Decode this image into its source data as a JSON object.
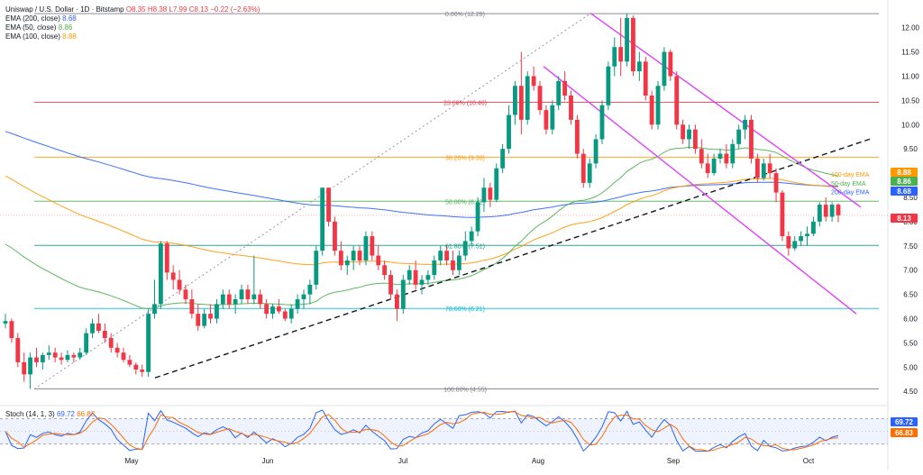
{
  "header": {
    "symbol": "Uniswap / U.S. Dollar · 1D · Bitstamp",
    "ohlc": "O8.35 H8.38 L7.99 C8.13 −0.22 (−2.63%)",
    "ema_rows": [
      {
        "label": "EMA (200, close)",
        "value": "8.68",
        "color": "#2962ff"
      },
      {
        "label": "EMA (50, close)",
        "value": "8.86",
        "color": "#4caf50"
      },
      {
        "label": "EMA (100, close)",
        "value": "8.88",
        "color": "#ff9800"
      }
    ]
  },
  "stoch_header": {
    "label": "Stoch (14, 1, 3)",
    "k": "69.72",
    "d": "66.83"
  },
  "chart_data": {
    "type": "candlestick",
    "title": "Uniswap / U.S. Dollar · 1D · Bitstamp",
    "price_axis_ticks": [
      "12.00",
      "11.50",
      "11.00",
      "10.50",
      "10.00",
      "9.50",
      "9.00",
      "8.50",
      "8.00",
      "7.50",
      "7.00",
      "6.50",
      "6.00",
      "5.50",
      "5.00",
      "4.50"
    ],
    "ylim": [
      4.5,
      12.3
    ],
    "time_labels": [
      "May",
      "Jun",
      "Jul",
      "Aug",
      "Sep",
      "Oct"
    ],
    "last_price": 8.13,
    "fibonacci": [
      {
        "label": "0.00% (12.29)",
        "value": 12.29,
        "color": "#787b86"
      },
      {
        "label": "23.60% (10.46)",
        "value": 10.46,
        "color": "#f23645"
      },
      {
        "label": "38.20% (9.33)",
        "value": 9.33,
        "color": "#ff9800"
      },
      {
        "label": "50.00% (8.42)",
        "value": 8.42,
        "color": "#4caf50"
      },
      {
        "label": "61.80% (7.51)",
        "value": 7.51,
        "color": "#089981"
      },
      {
        "label": "78.60% (6.21)",
        "value": 6.21,
        "color": "#00bcd4"
      },
      {
        "label": "100.00% (4.55)",
        "value": 4.55,
        "color": "#787b86"
      }
    ],
    "ema_labels": [
      {
        "text": "100-day EMA",
        "color": "#ff9800"
      },
      {
        "text": "50-day EMA",
        "color": "#4caf50"
      },
      {
        "text": "200-day EMA",
        "color": "#2962ff"
      }
    ],
    "price_tags": [
      {
        "value": "8.88",
        "color": "#ff9800"
      },
      {
        "value": "8.86",
        "color": "#4caf50"
      },
      {
        "value": "8.68",
        "color": "#2962ff"
      },
      {
        "value": "8.13",
        "color": "#f23645"
      }
    ],
    "stoch_tags": [
      {
        "value": "69.72",
        "color": "#2962ff"
      },
      {
        "value": "66.83",
        "color": "#ff6d00"
      }
    ],
    "candles": [
      {
        "o": 5.9,
        "h": 6.1,
        "l": 5.8,
        "c": 5.95
      },
      {
        "o": 5.95,
        "h": 6.0,
        "l": 5.5,
        "c": 5.6
      },
      {
        "o": 5.6,
        "h": 5.7,
        "l": 5.0,
        "c": 5.1
      },
      {
        "o": 5.1,
        "h": 5.3,
        "l": 4.7,
        "c": 4.85
      },
      {
        "o": 4.85,
        "h": 5.3,
        "l": 4.55,
        "c": 5.2
      },
      {
        "o": 5.2,
        "h": 5.4,
        "l": 5.0,
        "c": 5.1
      },
      {
        "o": 5.1,
        "h": 5.3,
        "l": 4.95,
        "c": 5.25
      },
      {
        "o": 5.25,
        "h": 5.45,
        "l": 5.15,
        "c": 5.3
      },
      {
        "o": 5.3,
        "h": 5.4,
        "l": 5.1,
        "c": 5.2
      },
      {
        "o": 5.2,
        "h": 5.3,
        "l": 5.05,
        "c": 5.15
      },
      {
        "o": 5.15,
        "h": 5.35,
        "l": 5.1,
        "c": 5.25
      },
      {
        "o": 5.25,
        "h": 5.3,
        "l": 5.1,
        "c": 5.2
      },
      {
        "o": 5.2,
        "h": 5.4,
        "l": 5.15,
        "c": 5.3
      },
      {
        "o": 5.3,
        "h": 5.8,
        "l": 5.25,
        "c": 5.7
      },
      {
        "o": 5.7,
        "h": 6.0,
        "l": 5.6,
        "c": 5.9
      },
      {
        "o": 5.9,
        "h": 6.1,
        "l": 5.7,
        "c": 5.75
      },
      {
        "o": 5.75,
        "h": 5.9,
        "l": 5.5,
        "c": 5.6
      },
      {
        "o": 5.6,
        "h": 5.7,
        "l": 5.3,
        "c": 5.4
      },
      {
        "o": 5.4,
        "h": 5.5,
        "l": 5.2,
        "c": 5.3
      },
      {
        "o": 5.3,
        "h": 5.4,
        "l": 5.1,
        "c": 5.15
      },
      {
        "o": 5.15,
        "h": 5.25,
        "l": 5.0,
        "c": 5.05
      },
      {
        "o": 5.05,
        "h": 5.1,
        "l": 4.85,
        "c": 4.95
      },
      {
        "o": 4.95,
        "h": 5.05,
        "l": 4.8,
        "c": 4.9
      },
      {
        "o": 4.9,
        "h": 6.2,
        "l": 4.8,
        "c": 6.1
      },
      {
        "o": 6.1,
        "h": 6.8,
        "l": 6.0,
        "c": 6.3
      },
      {
        "o": 6.3,
        "h": 7.6,
        "l": 6.2,
        "c": 7.55
      },
      {
        "o": 7.55,
        "h": 7.6,
        "l": 6.8,
        "c": 6.95
      },
      {
        "o": 6.95,
        "h": 7.1,
        "l": 6.6,
        "c": 6.8
      },
      {
        "o": 6.8,
        "h": 7.0,
        "l": 6.5,
        "c": 6.6
      },
      {
        "o": 6.6,
        "h": 6.7,
        "l": 6.3,
        "c": 6.4
      },
      {
        "o": 6.4,
        "h": 6.6,
        "l": 6.0,
        "c": 6.1
      },
      {
        "o": 6.1,
        "h": 6.3,
        "l": 5.75,
        "c": 5.85
      },
      {
        "o": 5.85,
        "h": 6.2,
        "l": 5.8,
        "c": 6.1
      },
      {
        "o": 6.1,
        "h": 6.3,
        "l": 5.9,
        "c": 6.0
      },
      {
        "o": 6.0,
        "h": 6.4,
        "l": 5.9,
        "c": 6.3
      },
      {
        "o": 6.3,
        "h": 6.6,
        "l": 6.2,
        "c": 6.5
      },
      {
        "o": 6.5,
        "h": 6.6,
        "l": 6.2,
        "c": 6.3
      },
      {
        "o": 6.3,
        "h": 6.5,
        "l": 6.1,
        "c": 6.4
      },
      {
        "o": 6.4,
        "h": 6.7,
        "l": 6.3,
        "c": 6.6
      },
      {
        "o": 6.6,
        "h": 6.7,
        "l": 6.3,
        "c": 6.4
      },
      {
        "o": 6.4,
        "h": 7.3,
        "l": 6.3,
        "c": 6.5
      },
      {
        "o": 6.5,
        "h": 6.6,
        "l": 6.2,
        "c": 6.3
      },
      {
        "o": 6.3,
        "h": 6.4,
        "l": 6.0,
        "c": 6.1
      },
      {
        "o": 6.1,
        "h": 6.3,
        "l": 6.0,
        "c": 6.25
      },
      {
        "o": 6.25,
        "h": 6.4,
        "l": 6.1,
        "c": 6.15
      },
      {
        "o": 6.15,
        "h": 6.2,
        "l": 5.95,
        "c": 6.0
      },
      {
        "o": 6.0,
        "h": 6.3,
        "l": 5.9,
        "c": 6.2
      },
      {
        "o": 6.2,
        "h": 6.5,
        "l": 6.1,
        "c": 6.4
      },
      {
        "o": 6.4,
        "h": 6.6,
        "l": 6.2,
        "c": 6.5
      },
      {
        "o": 6.5,
        "h": 6.8,
        "l": 6.3,
        "c": 6.7
      },
      {
        "o": 6.7,
        "h": 7.5,
        "l": 6.6,
        "c": 7.4
      },
      {
        "o": 7.4,
        "h": 8.7,
        "l": 7.3,
        "c": 8.7
      },
      {
        "o": 8.7,
        "h": 8.7,
        "l": 7.9,
        "c": 8.0
      },
      {
        "o": 8.0,
        "h": 8.1,
        "l": 7.3,
        "c": 7.4
      },
      {
        "o": 7.4,
        "h": 7.6,
        "l": 7.0,
        "c": 7.1
      },
      {
        "o": 7.1,
        "h": 7.3,
        "l": 6.9,
        "c": 7.2
      },
      {
        "o": 7.2,
        "h": 7.5,
        "l": 7.0,
        "c": 7.4
      },
      {
        "o": 7.4,
        "h": 7.5,
        "l": 7.1,
        "c": 7.2
      },
      {
        "o": 7.2,
        "h": 7.8,
        "l": 7.1,
        "c": 7.7
      },
      {
        "o": 7.7,
        "h": 7.8,
        "l": 7.2,
        "c": 7.3
      },
      {
        "o": 7.3,
        "h": 7.5,
        "l": 7.0,
        "c": 7.1
      },
      {
        "o": 7.1,
        "h": 7.2,
        "l": 6.8,
        "c": 6.9
      },
      {
        "o": 6.9,
        "h": 7.0,
        "l": 6.4,
        "c": 6.5
      },
      {
        "o": 6.5,
        "h": 6.6,
        "l": 5.95,
        "c": 6.2
      },
      {
        "o": 6.2,
        "h": 6.9,
        "l": 6.1,
        "c": 6.8
      },
      {
        "o": 6.8,
        "h": 7.1,
        "l": 6.7,
        "c": 7.0
      },
      {
        "o": 7.0,
        "h": 7.2,
        "l": 6.6,
        "c": 6.7
      },
      {
        "o": 6.7,
        "h": 6.9,
        "l": 6.5,
        "c": 6.8
      },
      {
        "o": 6.8,
        "h": 7.0,
        "l": 6.7,
        "c": 6.9
      },
      {
        "o": 6.9,
        "h": 7.3,
        "l": 6.8,
        "c": 7.2
      },
      {
        "o": 7.2,
        "h": 7.5,
        "l": 7.1,
        "c": 7.4
      },
      {
        "o": 7.4,
        "h": 7.5,
        "l": 7.1,
        "c": 7.2
      },
      {
        "o": 7.2,
        "h": 7.4,
        "l": 6.9,
        "c": 7.0
      },
      {
        "o": 7.0,
        "h": 7.4,
        "l": 6.9,
        "c": 7.3
      },
      {
        "o": 7.3,
        "h": 7.8,
        "l": 7.2,
        "c": 7.6
      },
      {
        "o": 7.6,
        "h": 7.9,
        "l": 7.5,
        "c": 7.8
      },
      {
        "o": 7.8,
        "h": 8.5,
        "l": 7.7,
        "c": 8.4
      },
      {
        "o": 8.4,
        "h": 8.9,
        "l": 8.2,
        "c": 8.7
      },
      {
        "o": 8.7,
        "h": 8.8,
        "l": 8.3,
        "c": 8.45
      },
      {
        "o": 8.45,
        "h": 9.2,
        "l": 8.4,
        "c": 9.1
      },
      {
        "o": 9.1,
        "h": 9.6,
        "l": 9.0,
        "c": 9.5
      },
      {
        "o": 9.5,
        "h": 10.4,
        "l": 9.4,
        "c": 10.2
      },
      {
        "o": 10.2,
        "h": 10.9,
        "l": 10.0,
        "c": 10.8
      },
      {
        "o": 10.8,
        "h": 11.5,
        "l": 9.8,
        "c": 10.1
      },
      {
        "o": 10.1,
        "h": 11.1,
        "l": 10.0,
        "c": 11.0
      },
      {
        "o": 11.0,
        "h": 11.2,
        "l": 10.7,
        "c": 10.8
      },
      {
        "o": 10.8,
        "h": 10.9,
        "l": 10.2,
        "c": 10.3
      },
      {
        "o": 10.3,
        "h": 10.4,
        "l": 9.8,
        "c": 9.9
      },
      {
        "o": 9.9,
        "h": 10.5,
        "l": 9.8,
        "c": 10.4
      },
      {
        "o": 10.4,
        "h": 11.0,
        "l": 10.3,
        "c": 10.9
      },
      {
        "o": 10.9,
        "h": 11.1,
        "l": 10.5,
        "c": 10.6
      },
      {
        "o": 10.6,
        "h": 10.7,
        "l": 10.0,
        "c": 10.1
      },
      {
        "o": 10.1,
        "h": 10.2,
        "l": 9.3,
        "c": 9.4
      },
      {
        "o": 9.4,
        "h": 9.5,
        "l": 8.7,
        "c": 8.8
      },
      {
        "o": 8.8,
        "h": 9.3,
        "l": 8.7,
        "c": 9.2
      },
      {
        "o": 9.2,
        "h": 9.8,
        "l": 9.1,
        "c": 9.7
      },
      {
        "o": 9.7,
        "h": 10.5,
        "l": 9.6,
        "c": 10.4
      },
      {
        "o": 10.4,
        "h": 11.3,
        "l": 10.3,
        "c": 11.2
      },
      {
        "o": 11.2,
        "h": 11.8,
        "l": 11.0,
        "c": 11.6
      },
      {
        "o": 11.6,
        "h": 12.2,
        "l": 11.0,
        "c": 11.3
      },
      {
        "o": 11.3,
        "h": 12.3,
        "l": 11.2,
        "c": 12.2
      },
      {
        "o": 12.2,
        "h": 12.25,
        "l": 11.0,
        "c": 11.1
      },
      {
        "o": 11.1,
        "h": 11.5,
        "l": 10.9,
        "c": 11.3
      },
      {
        "o": 11.3,
        "h": 11.4,
        "l": 10.5,
        "c": 10.6
      },
      {
        "o": 10.6,
        "h": 10.7,
        "l": 9.9,
        "c": 10.0
      },
      {
        "o": 10.0,
        "h": 10.9,
        "l": 9.9,
        "c": 10.8
      },
      {
        "o": 10.8,
        "h": 11.6,
        "l": 10.7,
        "c": 11.5
      },
      {
        "o": 11.5,
        "h": 11.55,
        "l": 10.9,
        "c": 11.0
      },
      {
        "o": 11.0,
        "h": 11.1,
        "l": 9.9,
        "c": 10.0
      },
      {
        "o": 10.0,
        "h": 10.1,
        "l": 9.6,
        "c": 9.7
      },
      {
        "o": 9.7,
        "h": 10.0,
        "l": 9.5,
        "c": 9.9
      },
      {
        "o": 9.9,
        "h": 10.0,
        "l": 9.4,
        "c": 9.5
      },
      {
        "o": 9.5,
        "h": 9.7,
        "l": 9.1,
        "c": 9.2
      },
      {
        "o": 9.2,
        "h": 9.4,
        "l": 8.9,
        "c": 9.0
      },
      {
        "o": 9.0,
        "h": 9.4,
        "l": 8.95,
        "c": 9.3
      },
      {
        "o": 9.3,
        "h": 9.5,
        "l": 9.2,
        "c": 9.4
      },
      {
        "o": 9.4,
        "h": 9.6,
        "l": 9.1,
        "c": 9.2
      },
      {
        "o": 9.2,
        "h": 9.7,
        "l": 9.1,
        "c": 9.6
      },
      {
        "o": 9.6,
        "h": 10.0,
        "l": 9.5,
        "c": 9.9
      },
      {
        "o": 9.9,
        "h": 10.2,
        "l": 9.7,
        "c": 10.1
      },
      {
        "o": 10.1,
        "h": 10.2,
        "l": 9.2,
        "c": 9.3
      },
      {
        "o": 9.3,
        "h": 9.4,
        "l": 8.8,
        "c": 8.9
      },
      {
        "o": 8.9,
        "h": 9.3,
        "l": 8.85,
        "c": 9.2
      },
      {
        "o": 9.2,
        "h": 9.4,
        "l": 8.9,
        "c": 9.0
      },
      {
        "o": 9.0,
        "h": 9.1,
        "l": 8.4,
        "c": 8.6
      },
      {
        "o": 8.6,
        "h": 8.65,
        "l": 7.6,
        "c": 7.7
      },
      {
        "o": 7.7,
        "h": 7.8,
        "l": 7.3,
        "c": 7.45
      },
      {
        "o": 7.45,
        "h": 7.7,
        "l": 7.4,
        "c": 7.6
      },
      {
        "o": 7.6,
        "h": 7.8,
        "l": 7.5,
        "c": 7.7
      },
      {
        "o": 7.7,
        "h": 7.9,
        "l": 7.5,
        "c": 7.75
      },
      {
        "o": 7.75,
        "h": 8.1,
        "l": 7.7,
        "c": 8.0
      },
      {
        "o": 8.0,
        "h": 8.4,
        "l": 7.9,
        "c": 8.35
      },
      {
        "o": 8.35,
        "h": 8.5,
        "l": 8.0,
        "c": 8.1
      },
      {
        "o": 8.1,
        "h": 8.4,
        "l": 8.0,
        "c": 8.35
      },
      {
        "o": 8.35,
        "h": 8.38,
        "l": 7.99,
        "c": 8.13
      }
    ],
    "stochastic": {
      "k_last": 69.72,
      "d_last": 66.83,
      "upper": 80,
      "lower": 20
    }
  }
}
